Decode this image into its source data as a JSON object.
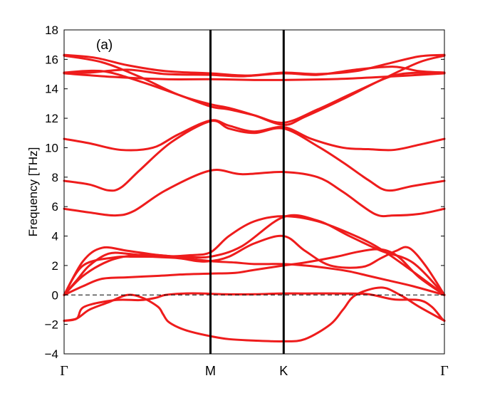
{
  "chart_data": {
    "type": "line",
    "panel_label": "(a)",
    "xlabel": "",
    "ylabel": "Frequency [THz]",
    "ylim": [
      -4,
      18
    ],
    "yticks": [
      -4,
      -2,
      0,
      2,
      4,
      6,
      8,
      10,
      12,
      14,
      16,
      18
    ],
    "xlim": [
      0,
      3
    ],
    "kpoints": [
      {
        "label": "Γ",
        "x": 0
      },
      {
        "label": "M",
        "x": 1.1547
      },
      {
        "label": "K",
        "x": 1.7321
      },
      {
        "label": "Γ",
        "x": 3
      }
    ],
    "kpoint_lines": [
      1.1547,
      1.7321
    ],
    "zero_line": 0,
    "band_color": "#ee1c1c",
    "zero_line_color": "#000000",
    "series": [
      {
        "x": [
          0,
          0.1,
          0.16,
          0.4,
          0.6,
          0.72,
          0.8,
          0.95,
          1.1,
          1.25,
          1.5,
          1.7,
          1.9,
          2.2,
          2.4,
          2.6,
          2.8,
          2.9,
          2.98,
          3
        ],
        "values": [
          -1.75,
          -1.6,
          -0.8,
          -0.35,
          -0.35,
          -0.2,
          0.0,
          0.1,
          0.1,
          0.05,
          0.05,
          0.1,
          0.1,
          0.1,
          0.05,
          -0.3,
          -0.35,
          -0.8,
          -1.6,
          -1.75
        ]
      },
      {
        "x": [
          0,
          0.1,
          0.2,
          0.35,
          0.5,
          0.62,
          0.74,
          0.78,
          0.82,
          0.9,
          1.0,
          1.1547,
          1.3,
          1.5,
          1.7321,
          1.9,
          2.1,
          2.2,
          2.3,
          2.5,
          2.65,
          2.8,
          3
        ],
        "values": [
          -1.75,
          -1.6,
          -1.0,
          -0.5,
          0.0,
          -0.2,
          -0.8,
          -1.3,
          -1.8,
          -2.2,
          -2.5,
          -2.8,
          -3.0,
          -3.1,
          -3.15,
          -3.0,
          -2.0,
          -1.0,
          0.0,
          0.5,
          0.0,
          -0.8,
          -1.75
        ]
      },
      {
        "x": [
          0,
          0.15,
          0.35,
          0.55,
          0.75,
          0.95,
          1.1547,
          1.35,
          1.5,
          1.7321,
          1.9,
          2.1,
          2.25,
          2.4,
          2.55,
          2.75,
          3
        ],
        "values": [
          0,
          1.3,
          2.3,
          2.7,
          2.7,
          2.5,
          2.3,
          2.2,
          2.1,
          2.1,
          2.0,
          1.8,
          1.6,
          1.3,
          1.0,
          0.6,
          0
        ]
      },
      {
        "x": [
          0,
          0.15,
          0.3,
          0.5,
          0.75,
          0.95,
          1.1547,
          1.35,
          1.5,
          1.7321,
          1.9,
          2.15,
          2.3,
          2.45,
          2.55,
          2.65,
          2.8,
          3
        ],
        "values": [
          0,
          0.6,
          1.1,
          1.2,
          1.3,
          1.4,
          1.45,
          1.5,
          1.7,
          2.0,
          2.2,
          2.6,
          2.9,
          3.1,
          3.0,
          2.5,
          1.2,
          0
        ]
      },
      {
        "x": [
          0,
          0.1,
          0.2,
          0.35,
          0.5,
          0.7,
          0.9,
          1.05,
          1.1547,
          1.3,
          1.5,
          1.7321,
          1.9,
          2.1,
          2.35,
          2.5,
          2.62,
          2.72,
          2.85,
          3
        ],
        "values": [
          0,
          1.0,
          2.0,
          2.8,
          2.8,
          2.6,
          2.5,
          2.3,
          2.3,
          2.6,
          3.5,
          4.0,
          3.0,
          2.0,
          1.9,
          2.5,
          3.0,
          3.2,
          2.0,
          0
        ]
      },
      {
        "x": [
          0,
          0.15,
          0.4,
          0.55,
          0.75,
          1.0,
          1.1547,
          1.3,
          1.5,
          1.7321,
          2.0,
          2.3,
          2.5,
          2.75,
          3
        ],
        "values": [
          0,
          2.0,
          2.55,
          2.6,
          2.6,
          2.7,
          2.9,
          4.0,
          5.0,
          5.35,
          5.0,
          4.0,
          3.1,
          1.6,
          0
        ]
      },
      {
        "x": [
          0,
          0.15,
          0.3,
          0.5,
          0.75,
          0.95,
          1.1547,
          1.4,
          1.7321,
          2.0,
          2.25,
          2.5,
          2.75,
          3
        ],
        "values": [
          0,
          2.3,
          3.2,
          3.0,
          2.7,
          2.6,
          2.6,
          3.3,
          5.3,
          5.05,
          4.0,
          3.0,
          2.2,
          0
        ]
      },
      {
        "x": [
          0,
          0.2,
          0.4,
          0.55,
          0.8,
          1.1547,
          1.4,
          1.7321,
          2.0,
          2.2,
          2.45,
          2.6,
          2.8,
          3
        ],
        "values": [
          5.85,
          5.6,
          5.4,
          5.7,
          7.1,
          8.45,
          8.2,
          8.35,
          8.0,
          7.0,
          5.5,
          5.4,
          5.5,
          5.85
        ]
      },
      {
        "x": [
          0,
          0.2,
          0.35,
          0.45,
          0.6,
          0.85,
          1.1547,
          1.3,
          1.5,
          1.7321,
          2.0,
          2.2,
          2.4,
          2.55,
          2.75,
          3
        ],
        "values": [
          7.75,
          7.5,
          7.1,
          7.3,
          8.5,
          10.4,
          11.8,
          11.3,
          11.0,
          11.3,
          10.1,
          9.0,
          7.8,
          7.1,
          7.4,
          7.75
        ]
      },
      {
        "x": [
          0,
          0.2,
          0.45,
          0.7,
          0.9,
          1.1547,
          1.3,
          1.5,
          1.7321,
          1.95,
          2.2,
          2.4,
          2.6,
          2.8,
          3
        ],
        "values": [
          10.6,
          10.3,
          9.85,
          10.0,
          10.9,
          11.85,
          11.5,
          11.1,
          11.4,
          10.6,
          10.0,
          9.9,
          9.85,
          10.2,
          10.6
        ]
      },
      {
        "x": [
          0,
          0.3,
          0.6,
          0.9,
          1.1547,
          1.3,
          1.5,
          1.7321,
          2.0,
          2.3,
          2.6,
          2.85,
          3
        ],
        "values": [
          15.1,
          15.2,
          14.5,
          13.6,
          12.8,
          12.6,
          12.2,
          11.7,
          12.6,
          13.8,
          14.9,
          15.1,
          15.1
        ]
      },
      {
        "x": [
          0,
          0.3,
          0.6,
          0.9,
          1.1547,
          1.3,
          1.5,
          1.7321,
          1.9,
          2.2,
          2.5,
          2.8,
          3
        ],
        "values": [
          16.25,
          15.8,
          14.8,
          13.6,
          12.95,
          12.7,
          12.2,
          11.55,
          12.1,
          13.3,
          14.6,
          15.8,
          16.25
        ]
      },
      {
        "x": [
          0,
          0.4,
          0.8,
          1.1547,
          1.5,
          1.7321,
          2.1,
          2.5,
          3
        ],
        "values": [
          15.05,
          14.8,
          14.65,
          14.65,
          14.6,
          14.6,
          14.65,
          14.8,
          15.05
        ]
      },
      {
        "x": [
          0,
          0.2,
          0.5,
          0.8,
          1.1547,
          1.4,
          1.7321,
          2.0,
          2.3,
          2.6,
          2.8,
          3
        ],
        "values": [
          15.1,
          15.1,
          15.3,
          15.0,
          14.95,
          14.85,
          15.05,
          14.95,
          15.3,
          15.5,
          15.2,
          15.1
        ]
      },
      {
        "x": [
          0,
          0.25,
          0.5,
          0.8,
          1.1547,
          1.45,
          1.7321,
          2.0,
          2.3,
          2.55,
          2.8,
          3
        ],
        "values": [
          16.3,
          16.1,
          15.6,
          15.2,
          15.05,
          14.9,
          15.1,
          15.0,
          15.2,
          15.7,
          16.2,
          16.3
        ]
      }
    ]
  }
}
